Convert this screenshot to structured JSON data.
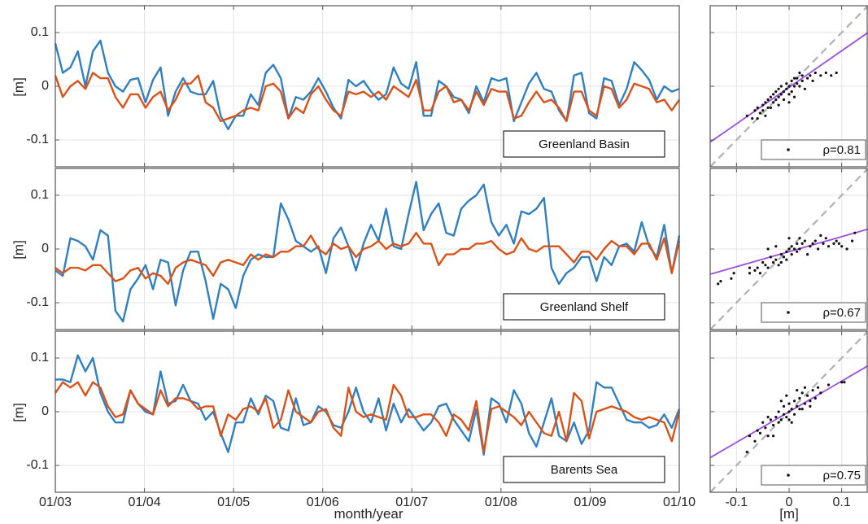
{
  "figure": {
    "xlabel": "month/year",
    "ylabel": "[m]",
    "scatter_xlabel": "[m]",
    "time_ticks": [
      "01/03",
      "01/04",
      "01/05",
      "01/06",
      "01/07",
      "01/08",
      "01/09",
      "01/10"
    ],
    "y_ticks": [
      "0.1",
      "0",
      "-0.1"
    ],
    "scatter_x_ticks": [
      "-0.1",
      "0",
      "0.1"
    ]
  },
  "colors": {
    "blue": "#2f7fc1",
    "orange": "#d95319",
    "fit": "#9b4ee0",
    "diag": "#b0b0b0",
    "dots": "#111111"
  },
  "chart_data": [
    {
      "type": "line",
      "panel_label": "Greenland Basin",
      "xlabel": "",
      "ylabel": "[m]",
      "xlim": [
        2003,
        2010
      ],
      "ylim": [
        -0.15,
        0.15
      ],
      "series": [
        {
          "values": [
            0.08,
            0.025,
            0.035,
            0.065,
            0.0,
            0.065,
            0.085,
            0.025,
            0.0,
            -0.01,
            0.012,
            0.015,
            -0.03,
            0.012,
            0.035,
            -0.055,
            -0.01,
            0.015,
            -0.01,
            -0.015,
            -0.015,
            0.01,
            -0.055,
            -0.08,
            -0.055,
            -0.055,
            -0.015,
            -0.035,
            0.025,
            0.04,
            0.015,
            -0.06,
            -0.02,
            -0.025,
            -0.01,
            0.015,
            -0.01,
            -0.04,
            -0.06,
            0.012,
            0.0,
            0.01,
            -0.01,
            -0.025,
            -0.015,
            0.035,
            0.005,
            -0.005,
            0.045,
            -0.055,
            -0.055,
            0.01,
            0.0,
            -0.02,
            -0.025,
            -0.05,
            0.0,
            -0.03,
            0.015,
            0.01,
            0.015,
            -0.065,
            -0.03,
            0.005,
            0.025,
            -0.005,
            -0.01,
            -0.045,
            -0.065,
            0.02,
            0.025,
            -0.05,
            -0.06,
            0.015,
            0.01,
            -0.035,
            -0.005,
            0.045,
            0.03,
            0.012,
            -0.025,
            0.0,
            -0.01,
            -0.005
          ]
        },
        {
          "values": [
            0.02,
            -0.02,
            0.0,
            0.01,
            -0.005,
            0.025,
            0.015,
            0.015,
            -0.02,
            -0.04,
            -0.015,
            -0.015,
            -0.04,
            -0.02,
            -0.01,
            -0.045,
            -0.025,
            0.005,
            0.005,
            0.02,
            -0.03,
            -0.04,
            -0.065,
            -0.06,
            -0.055,
            -0.045,
            -0.04,
            -0.045,
            0.0,
            0.005,
            -0.01,
            -0.06,
            -0.04,
            -0.05,
            -0.015,
            0.0,
            -0.025,
            -0.045,
            -0.055,
            -0.01,
            -0.015,
            -0.01,
            -0.02,
            -0.01,
            -0.025,
            0.0,
            -0.01,
            -0.02,
            0.012,
            -0.045,
            -0.045,
            -0.01,
            0.0,
            -0.03,
            -0.025,
            -0.045,
            -0.01,
            -0.035,
            -0.005,
            -0.01,
            -0.01,
            -0.06,
            -0.055,
            -0.03,
            -0.01,
            -0.03,
            -0.025,
            -0.04,
            -0.065,
            -0.01,
            -0.01,
            -0.045,
            -0.055,
            0.0,
            -0.005,
            -0.04,
            -0.025,
            0.005,
            0.0,
            -0.005,
            -0.03,
            -0.025,
            -0.045,
            -0.025
          ]
        }
      ]
    },
    {
      "type": "line",
      "panel_label": "Greenland Shelf",
      "xlabel": "",
      "ylabel": "[m]",
      "xlim": [
        2003,
        2010
      ],
      "ylim": [
        -0.15,
        0.15
      ],
      "series": [
        {
          "values": [
            -0.04,
            -0.05,
            0.02,
            0.015,
            0.005,
            -0.02,
            0.035,
            0.025,
            -0.115,
            -0.135,
            -0.075,
            -0.055,
            -0.03,
            -0.075,
            -0.02,
            -0.025,
            -0.105,
            -0.04,
            -0.005,
            -0.005,
            -0.06,
            -0.13,
            -0.065,
            -0.075,
            -0.11,
            -0.05,
            -0.02,
            -0.01,
            -0.015,
            -0.015,
            0.085,
            0.055,
            0.015,
            0.005,
            -0.005,
            0.005,
            -0.045,
            0.02,
            0.04,
            0.005,
            -0.04,
            0.01,
            0.045,
            0.015,
            0.075,
            0.005,
            0.0,
            0.065,
            0.125,
            0.035,
            0.065,
            0.085,
            0.03,
            0.025,
            0.075,
            0.09,
            0.1,
            0.12,
            0.05,
            0.025,
            0.045,
            0.01,
            0.07,
            0.065,
            0.075,
            0.095,
            -0.035,
            -0.065,
            -0.045,
            -0.035,
            -0.015,
            -0.015,
            -0.06,
            -0.015,
            -0.03,
            0.005,
            0.01,
            -0.005,
            0.05,
            0.005,
            -0.015,
            0.045,
            -0.045,
            0.025
          ]
        },
        {
          "values": [
            -0.035,
            -0.045,
            -0.035,
            -0.035,
            -0.04,
            -0.03,
            -0.03,
            -0.045,
            -0.06,
            -0.055,
            -0.04,
            -0.035,
            -0.055,
            -0.045,
            -0.05,
            -0.065,
            -0.035,
            -0.025,
            -0.02,
            -0.025,
            -0.03,
            -0.05,
            -0.025,
            -0.02,
            -0.025,
            -0.03,
            -0.01,
            -0.02,
            -0.01,
            -0.015,
            -0.005,
            -0.005,
            0.005,
            0.005,
            0.025,
            0.0,
            -0.01,
            0.01,
            0.0,
            0.005,
            -0.015,
            0.0,
            0.005,
            0.015,
            0.0,
            0.01,
            0.005,
            0.01,
            0.03,
            0.01,
            0.01,
            -0.03,
            -0.01,
            -0.01,
            0.0,
            0.0,
            0.01,
            0.01,
            0.015,
            0.0,
            -0.01,
            -0.005,
            0.02,
            0.0,
            -0.005,
            0.005,
            0.005,
            0.005,
            -0.01,
            -0.025,
            -0.005,
            -0.005,
            -0.02,
            0.0,
            0.015,
            0.005,
            0.005,
            -0.01,
            0.01,
            0.01,
            -0.02,
            0.02,
            -0.045,
            0.015
          ]
        }
      ]
    },
    {
      "type": "line",
      "panel_label": "Barents Sea",
      "xlabel": "month/year",
      "ylabel": "[m]",
      "xlim": [
        2003,
        2010
      ],
      "ylim": [
        -0.15,
        0.15
      ],
      "series": [
        {
          "values": [
            0.06,
            0.06,
            0.055,
            0.105,
            0.075,
            0.1,
            0.035,
            0.0,
            -0.02,
            -0.02,
            0.04,
            0.015,
            0.0,
            -0.005,
            0.075,
            0.015,
            0.02,
            0.05,
            0.02,
            0.015,
            -0.015,
            0.0,
            -0.04,
            -0.075,
            -0.02,
            -0.02,
            0.025,
            -0.005,
            0.03,
            0.02,
            -0.03,
            -0.035,
            0.025,
            -0.025,
            -0.02,
            0.01,
            0.0,
            -0.025,
            -0.03,
            0.0,
            0.045,
            0.0,
            -0.02,
            0.025,
            -0.035,
            0.015,
            -0.02,
            0.005,
            -0.015,
            -0.035,
            -0.02,
            0.01,
            0.015,
            -0.015,
            -0.035,
            -0.055,
            0.005,
            -0.08,
            0.025,
            0.015,
            -0.02,
            0.04,
            0.015,
            -0.04,
            -0.065,
            -0.02,
            0.025,
            -0.045,
            -0.055,
            -0.02,
            -0.06,
            -0.035,
            0.055,
            0.045,
            0.045,
            0.015,
            -0.015,
            -0.02,
            -0.02,
            -0.03,
            -0.025,
            -0.005,
            -0.03,
            0.005
          ]
        },
        {
          "values": [
            0.035,
            0.055,
            0.045,
            0.055,
            0.03,
            0.055,
            0.045,
            0.01,
            -0.01,
            -0.005,
            0.04,
            0.015,
            0.005,
            -0.005,
            0.04,
            0.01,
            0.025,
            0.025,
            0.02,
            0.005,
            0.01,
            0.01,
            -0.045,
            -0.005,
            -0.015,
            0.005,
            0.01,
            0.0,
            0.025,
            -0.03,
            -0.015,
            0.04,
            0.0,
            -0.01,
            -0.02,
            0.0,
            0.005,
            -0.03,
            -0.045,
            0.045,
            0.0,
            -0.01,
            -0.005,
            -0.01,
            -0.015,
            0.05,
            0.03,
            -0.01,
            -0.01,
            -0.005,
            -0.005,
            -0.02,
            -0.045,
            -0.005,
            -0.015,
            -0.035,
            0.02,
            -0.075,
            0.005,
            0.01,
            0.0,
            -0.01,
            -0.025,
            0.0,
            -0.02,
            -0.04,
            -0.045,
            0.0,
            -0.055,
            0.035,
            0.02,
            -0.05,
            0.0,
            0.005,
            0.01,
            0.005,
            0.0,
            -0.01,
            -0.015,
            -0.01,
            -0.015,
            -0.02,
            -0.055,
            0.0
          ]
        }
      ]
    },
    {
      "type": "scatter",
      "panel_label": "ρ=0.81",
      "xlabel": "",
      "xlim": [
        -0.15,
        0.15
      ],
      "ylim": [
        -0.15,
        0.15
      ],
      "fit": {
        "slope": 0.68,
        "intercept": -0.002
      },
      "points": [
        [
          -0.08,
          -0.055
        ],
        [
          -0.07,
          -0.06
        ],
        [
          -0.065,
          -0.045
        ],
        [
          -0.06,
          -0.04
        ],
        [
          -0.055,
          -0.05
        ],
        [
          -0.05,
          -0.035
        ],
        [
          -0.05,
          -0.045
        ],
        [
          -0.045,
          -0.03
        ],
        [
          -0.04,
          -0.04
        ],
        [
          -0.04,
          -0.025
        ],
        [
          -0.035,
          -0.02
        ],
        [
          -0.03,
          -0.03
        ],
        [
          -0.03,
          -0.015
        ],
        [
          -0.025,
          -0.025
        ],
        [
          -0.025,
          -0.01
        ],
        [
          -0.02,
          -0.02
        ],
        [
          -0.02,
          -0.005
        ],
        [
          -0.015,
          -0.015
        ],
        [
          -0.015,
          0.0
        ],
        [
          -0.01,
          -0.01
        ],
        [
          -0.01,
          -0.025
        ],
        [
          -0.005,
          -0.005
        ],
        [
          -0.005,
          0.005
        ],
        [
          0.0,
          -0.015
        ],
        [
          0.0,
          0.0
        ],
        [
          0.005,
          -0.01
        ],
        [
          0.005,
          0.01
        ],
        [
          0.01,
          0.0
        ],
        [
          0.01,
          -0.02
        ],
        [
          0.015,
          0.005
        ],
        [
          0.015,
          0.015
        ],
        [
          0.02,
          0.0
        ],
        [
          0.025,
          0.01
        ],
        [
          0.025,
          0.02
        ],
        [
          0.03,
          -0.005
        ],
        [
          0.035,
          0.015
        ],
        [
          0.04,
          0.02
        ],
        [
          0.045,
          0.01
        ],
        [
          0.05,
          0.025
        ],
        [
          0.06,
          0.02
        ],
        [
          0.07,
          0.025
        ],
        [
          0.08,
          0.02
        ],
        [
          0.09,
          0.025
        ],
        [
          -0.06,
          -0.06
        ],
        [
          -0.045,
          -0.055
        ],
        [
          -0.035,
          -0.04
        ],
        [
          -0.02,
          -0.035
        ],
        [
          0.0,
          -0.03
        ],
        [
          0.01,
          0.015
        ],
        [
          0.02,
          0.025
        ]
      ]
    },
    {
      "type": "scatter",
      "panel_label": "ρ=0.67",
      "xlabel": "",
      "xlim": [
        -0.15,
        0.15
      ],
      "ylim": [
        -0.15,
        0.15
      ],
      "fit": {
        "slope": 0.28,
        "intercept": -0.005
      },
      "points": [
        [
          -0.135,
          -0.065
        ],
        [
          -0.13,
          -0.06
        ],
        [
          -0.11,
          -0.055
        ],
        [
          -0.105,
          -0.045
        ],
        [
          -0.075,
          -0.035
        ],
        [
          -0.075,
          -0.045
        ],
        [
          -0.065,
          -0.04
        ],
        [
          -0.06,
          -0.035
        ],
        [
          -0.055,
          -0.045
        ],
        [
          -0.05,
          -0.025
        ],
        [
          -0.045,
          -0.03
        ],
        [
          -0.04,
          -0.035
        ],
        [
          -0.035,
          -0.015
        ],
        [
          -0.03,
          -0.025
        ],
        [
          -0.025,
          -0.02
        ],
        [
          -0.02,
          -0.03
        ],
        [
          -0.015,
          -0.01
        ],
        [
          -0.015,
          -0.025
        ],
        [
          -0.01,
          -0.015
        ],
        [
          -0.005,
          -0.005
        ],
        [
          -0.005,
          -0.02
        ],
        [
          0.0,
          0.0
        ],
        [
          0.005,
          -0.01
        ],
        [
          0.005,
          0.005
        ],
        [
          0.01,
          0.0
        ],
        [
          0.015,
          -0.005
        ],
        [
          0.015,
          0.01
        ],
        [
          0.02,
          0.0
        ],
        [
          0.025,
          0.01
        ],
        [
          0.03,
          0.015
        ],
        [
          0.035,
          -0.01
        ],
        [
          0.04,
          0.005
        ],
        [
          0.045,
          0.01
        ],
        [
          0.05,
          0.015
        ],
        [
          0.055,
          0.0
        ],
        [
          0.065,
          0.01
        ],
        [
          0.07,
          0.02
        ],
        [
          0.075,
          0.005
        ],
        [
          0.085,
          0.01
        ],
        [
          0.09,
          0.015
        ],
        [
          0.1,
          0.005
        ],
        [
          0.12,
          0.015
        ],
        [
          0.125,
          0.03
        ],
        [
          -0.04,
          0.0
        ],
        [
          -0.025,
          0.005
        ],
        [
          0.0,
          0.02
        ],
        [
          0.02,
          0.02
        ],
        [
          0.06,
          0.025
        ],
        [
          0.095,
          0.01
        ],
        [
          0.11,
          0.0
        ]
      ]
    },
    {
      "type": "scatter",
      "panel_label": "ρ=0.75",
      "xlabel": "[m]",
      "xlim": [
        -0.15,
        0.15
      ],
      "ylim": [
        -0.15,
        0.15
      ],
      "fit": {
        "slope": 0.57,
        "intercept": 0.0
      },
      "points": [
        [
          -0.08,
          -0.075
        ],
        [
          -0.075,
          -0.045
        ],
        [
          -0.065,
          -0.055
        ],
        [
          -0.06,
          -0.035
        ],
        [
          -0.055,
          -0.04
        ],
        [
          -0.05,
          -0.02
        ],
        [
          -0.045,
          -0.03
        ],
        [
          -0.04,
          -0.045
        ],
        [
          -0.035,
          -0.015
        ],
        [
          -0.03,
          -0.025
        ],
        [
          -0.025,
          -0.01
        ],
        [
          -0.02,
          -0.02
        ],
        [
          -0.02,
          0.0
        ],
        [
          -0.015,
          -0.015
        ],
        [
          -0.01,
          -0.005
        ],
        [
          -0.01,
          0.01
        ],
        [
          -0.005,
          -0.01
        ],
        [
          0.0,
          0.0
        ],
        [
          0.0,
          0.015
        ],
        [
          0.005,
          0.005
        ],
        [
          0.01,
          -0.005
        ],
        [
          0.01,
          0.02
        ],
        [
          0.015,
          0.01
        ],
        [
          0.02,
          0.025
        ],
        [
          0.025,
          0.005
        ],
        [
          0.025,
          0.035
        ],
        [
          0.03,
          0.015
        ],
        [
          0.035,
          0.03
        ],
        [
          0.04,
          0.02
        ],
        [
          0.045,
          0.04
        ],
        [
          0.05,
          0.025
        ],
        [
          0.055,
          0.045
        ],
        [
          0.06,
          0.035
        ],
        [
          0.075,
          0.05
        ],
        [
          0.1,
          0.055
        ],
        [
          0.105,
          0.055
        ],
        [
          -0.03,
          -0.045
        ],
        [
          -0.015,
          0.02
        ],
        [
          0.005,
          -0.02
        ],
        [
          0.015,
          0.04
        ],
        [
          0.02,
          0.005
        ],
        [
          0.03,
          0.045
        ],
        [
          0.04,
          0.01
        ],
        [
          -0.04,
          -0.01
        ],
        [
          -0.005,
          0.03
        ],
        [
          0.0,
          -0.015
        ]
      ]
    }
  ]
}
